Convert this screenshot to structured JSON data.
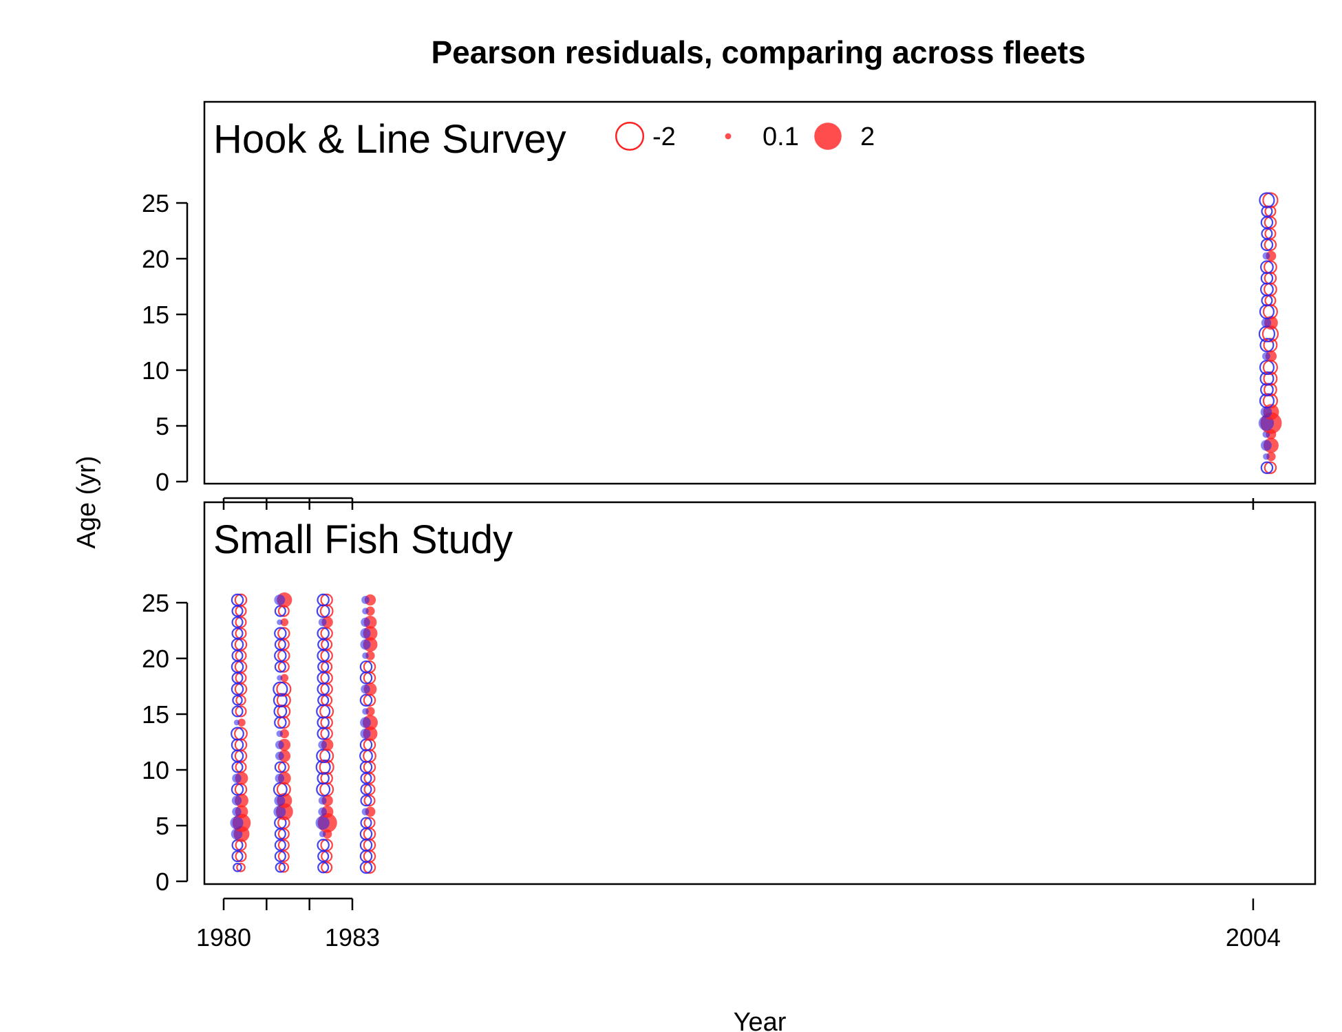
{
  "chart_data": {
    "type": "scatter",
    "subtype": "bubble",
    "title": "Pearson residuals,  comparing across fleets",
    "xlabel": "Year",
    "ylabel": "Age (yr)",
    "x_ticks": [
      1980,
      1983,
      2004
    ],
    "x_minor_ticks": [
      1981,
      1982
    ],
    "y_ticks": [
      0,
      5,
      10,
      15,
      20,
      25
    ],
    "ylim": [
      0,
      30
    ],
    "colors": {
      "observed_high": "#ff2020",
      "observed_low": "#2222ee"
    },
    "legend": {
      "placement": "top-left (inside top panel)",
      "entries": [
        {
          "label": "-2",
          "value": -2,
          "style": "open"
        },
        {
          "label": "0.1",
          "value": 0.1,
          "style": "filled"
        },
        {
          "label": "2",
          "value": 2,
          "style": "filled"
        }
      ]
    },
    "panels": [
      {
        "name": "Hook & Line Survey",
        "years": [
          2004
        ],
        "residuals": {
          "2004": [
            [
              1,
              -0.6
            ],
            [
              2,
              0.4
            ],
            [
              3,
              1.1
            ],
            [
              4,
              0.5
            ],
            [
              5,
              2.2
            ],
            [
              6,
              1.2
            ],
            [
              7,
              -0.9
            ],
            [
              8,
              -0.7
            ],
            [
              9,
              -0.8
            ],
            [
              10,
              -0.9
            ],
            [
              11,
              0.6
            ],
            [
              12,
              -0.8
            ],
            [
              13,
              -1.1
            ],
            [
              14,
              0.9
            ],
            [
              15,
              -0.9
            ],
            [
              16,
              -0.5
            ],
            [
              17,
              -0.7
            ],
            [
              18,
              -0.6
            ],
            [
              19,
              -0.7
            ],
            [
              20,
              0.5
            ],
            [
              21,
              -0.6
            ],
            [
              22,
              -0.5
            ],
            [
              23,
              -0.6
            ],
            [
              24,
              -0.5
            ],
            [
              25,
              -1.0
            ]
          ]
        }
      },
      {
        "name": "Small Fish Study",
        "years": [
          1980,
          1981,
          1982,
          1983
        ],
        "residuals": {
          "1980": [
            [
              1,
              -0.3
            ],
            [
              2,
              -0.5
            ],
            [
              3,
              -0.5
            ],
            [
              4,
              1.2
            ],
            [
              5,
              1.6
            ],
            [
              6,
              0.8
            ],
            [
              7,
              0.9
            ],
            [
              8,
              -0.6
            ],
            [
              9,
              0.8
            ],
            [
              10,
              -0.5
            ],
            [
              11,
              -0.6
            ],
            [
              12,
              -0.6
            ],
            [
              13,
              -0.7
            ],
            [
              14,
              0.3
            ],
            [
              15,
              -0.5
            ],
            [
              16,
              -0.4
            ],
            [
              17,
              -0.6
            ],
            [
              18,
              -0.5
            ],
            [
              19,
              -0.6
            ],
            [
              20,
              -0.5
            ],
            [
              21,
              -0.6
            ],
            [
              22,
              -0.5
            ],
            [
              23,
              -0.5
            ],
            [
              24,
              -0.5
            ],
            [
              25,
              -0.6
            ]
          ],
          "1981": [
            [
              1,
              -0.4
            ],
            [
              2,
              -0.5
            ],
            [
              3,
              -0.5
            ],
            [
              4,
              -0.5
            ],
            [
              5,
              -0.6
            ],
            [
              6,
              1.4
            ],
            [
              7,
              1.1
            ],
            [
              8,
              -0.8
            ],
            [
              9,
              0.8
            ],
            [
              10,
              -0.5
            ],
            [
              11,
              0.7
            ],
            [
              12,
              0.7
            ],
            [
              13,
              0.4
            ],
            [
              14,
              -0.6
            ],
            [
              15,
              -0.7
            ],
            [
              16,
              -0.8
            ],
            [
              17,
              -0.9
            ],
            [
              18,
              0.3
            ],
            [
              19,
              -0.5
            ],
            [
              20,
              -0.6
            ],
            [
              21,
              -0.5
            ],
            [
              22,
              -0.6
            ],
            [
              23,
              0.3
            ],
            [
              24,
              -0.5
            ],
            [
              25,
              1.1
            ]
          ],
          "1982": [
            [
              1,
              -0.5
            ],
            [
              2,
              -0.5
            ],
            [
              3,
              -0.6
            ],
            [
              4,
              0.4
            ],
            [
              5,
              1.8
            ],
            [
              6,
              0.7
            ],
            [
              7,
              0.6
            ],
            [
              8,
              -0.8
            ],
            [
              9,
              -0.6
            ],
            [
              10,
              -0.9
            ],
            [
              11,
              -0.8
            ],
            [
              12,
              0.7
            ],
            [
              13,
              -0.6
            ],
            [
              14,
              -0.6
            ],
            [
              15,
              -0.8
            ],
            [
              16,
              -0.5
            ],
            [
              17,
              -0.6
            ],
            [
              18,
              -0.6
            ],
            [
              19,
              -0.5
            ],
            [
              20,
              -0.6
            ],
            [
              21,
              -0.5
            ],
            [
              22,
              -0.6
            ],
            [
              23,
              0.6
            ],
            [
              24,
              -0.7
            ],
            [
              25,
              -0.6
            ]
          ],
          "1983": [
            [
              1,
              -0.6
            ],
            [
              2,
              -0.6
            ],
            [
              3,
              -0.6
            ],
            [
              4,
              -0.6
            ],
            [
              5,
              -0.5
            ],
            [
              6,
              0.5
            ],
            [
              7,
              -0.5
            ],
            [
              8,
              -0.5
            ],
            [
              9,
              -0.5
            ],
            [
              10,
              -0.6
            ],
            [
              11,
              -0.7
            ],
            [
              12,
              -0.6
            ],
            [
              13,
              1.0
            ],
            [
              14,
              1.1
            ],
            [
              15,
              0.4
            ],
            [
              16,
              -0.6
            ],
            [
              17,
              0.8
            ],
            [
              18,
              -0.6
            ],
            [
              19,
              -0.6
            ],
            [
              20,
              0.4
            ],
            [
              21,
              1.0
            ],
            [
              22,
              1.0
            ],
            [
              23,
              0.8
            ],
            [
              24,
              0.4
            ],
            [
              25,
              0.6
            ]
          ]
        }
      }
    ]
  }
}
